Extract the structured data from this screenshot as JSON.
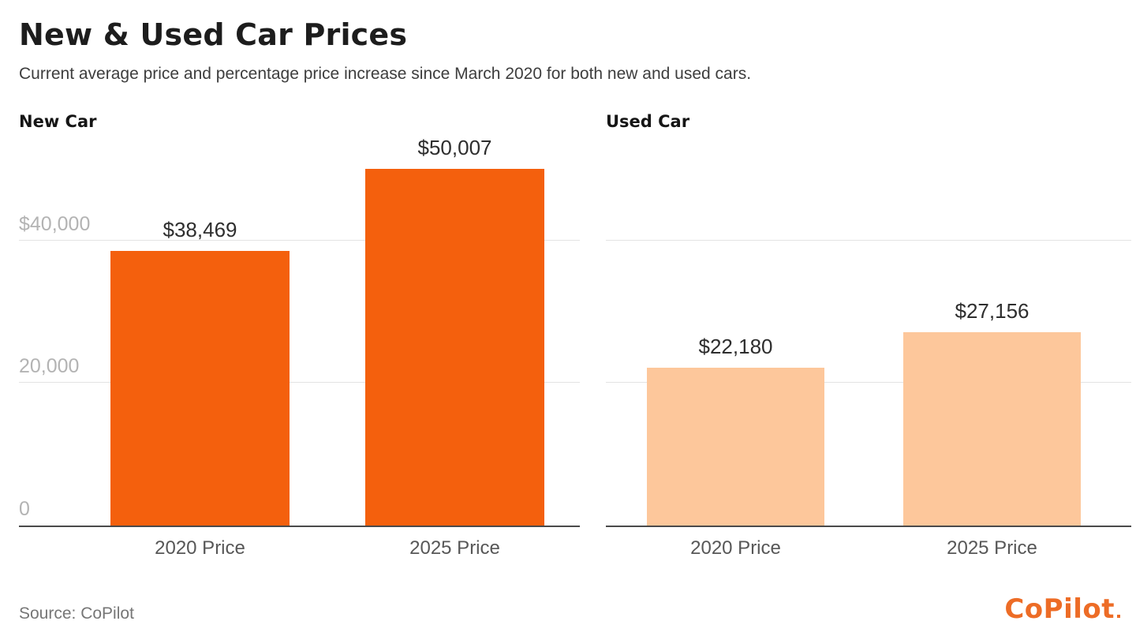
{
  "page": {
    "title": "New & Used Car Prices",
    "subtitle": "Current average price and percentage price increase since March 2020 for both new and used cars.",
    "source_note": "Source: CoPilot",
    "brand_logo": "CoPilot"
  },
  "colors": {
    "new_car_bar": "#F4600D",
    "used_car_bar": "#FDC79B",
    "brand_orange": "#ED6C26",
    "gridline": "#E3E3E3",
    "axis_line": "#4A4A4A"
  },
  "chart_data": [
    {
      "type": "bar",
      "title": "New Car",
      "categories": [
        "2020 Price",
        "2025 Price"
      ],
      "values": [
        38469,
        50007
      ],
      "value_labels": [
        "$38,469",
        "$50,007"
      ],
      "bar_color": "#F4600D",
      "ylim": [
        0,
        54000
      ],
      "grid": true,
      "legend_position": "none",
      "yticks": [
        {
          "value": 0,
          "label": "0"
        },
        {
          "value": 20000,
          "label": "20,000"
        },
        {
          "value": 40000,
          "label": "$40,000"
        }
      ]
    },
    {
      "type": "bar",
      "title": "Used Car",
      "categories": [
        "2020 Price",
        "2025 Price"
      ],
      "values": [
        22180,
        27156
      ],
      "value_labels": [
        "$22,180",
        "$27,156"
      ],
      "bar_color": "#FDC79B",
      "ylim": [
        0,
        54000
      ],
      "grid": true,
      "legend_position": "none",
      "yticks": [
        {
          "value": 20000,
          "label": ""
        },
        {
          "value": 40000,
          "label": ""
        }
      ]
    }
  ]
}
